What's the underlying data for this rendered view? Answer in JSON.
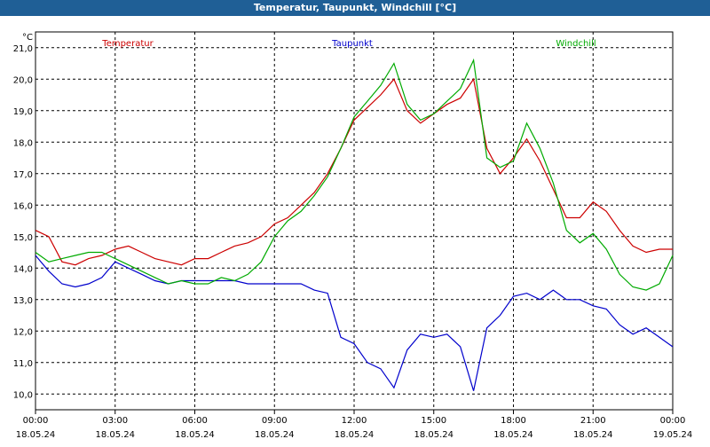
{
  "window": {
    "title": "Temperatur, Taupunkt, Windchill [°C]"
  },
  "colors": {
    "temperature": "#cc0000",
    "dewpoint": "#0000cc",
    "windchill": "#00aa00",
    "grid": "#000000"
  },
  "chart_data": {
    "type": "line",
    "title": "Temperatur, Taupunkt, Windchill [°C]",
    "ylabel": "°C",
    "xlabel": "",
    "ylim": [
      9.5,
      21.5
    ],
    "xlim": [
      0,
      24
    ],
    "grid": true,
    "y_ticks": [
      10.0,
      11.0,
      12.0,
      13.0,
      14.0,
      15.0,
      16.0,
      17.0,
      18.0,
      19.0,
      20.0,
      21.0
    ],
    "y_tick_labels": [
      "10,0",
      "11,0",
      "12,0",
      "13,0",
      "14,0",
      "15,0",
      "16,0",
      "17,0",
      "18,0",
      "19,0",
      "20,0",
      "21,0"
    ],
    "x_ticks": [
      0,
      3,
      6,
      9,
      12,
      15,
      18,
      21,
      24
    ],
    "x_tick_labels": [
      {
        "time": "00:00",
        "date": "18.05.24"
      },
      {
        "time": "03:00",
        "date": "18.05.24"
      },
      {
        "time": "06:00",
        "date": "18.05.24"
      },
      {
        "time": "09:00",
        "date": "18.05.24"
      },
      {
        "time": "12:00",
        "date": "18.05.24"
      },
      {
        "time": "15:00",
        "date": "18.05.24"
      },
      {
        "time": "18:00",
        "date": "18.05.24"
      },
      {
        "time": "21:00",
        "date": "18.05.24"
      },
      {
        "time": "00:00",
        "date": "19.05.24"
      }
    ],
    "x": [
      0,
      0.5,
      1,
      1.5,
      2,
      2.5,
      3,
      3.5,
      4,
      4.5,
      5,
      5.5,
      6,
      6.5,
      7,
      7.5,
      8,
      8.5,
      9,
      9.5,
      10,
      10.5,
      11,
      11.5,
      12,
      12.5,
      13,
      13.5,
      14,
      14.5,
      15,
      15.5,
      16,
      16.5,
      17,
      17.5,
      18,
      18.5,
      19,
      19.5,
      20,
      20.5,
      21,
      21.5,
      22,
      22.5,
      23,
      23.5,
      24
    ],
    "series": [
      {
        "name": "Temperatur",
        "color": "#cc0000",
        "values": [
          15.2,
          15.0,
          14.2,
          14.1,
          14.3,
          14.4,
          14.6,
          14.7,
          14.5,
          14.3,
          14.2,
          14.1,
          14.3,
          14.3,
          14.5,
          14.7,
          14.8,
          15.0,
          15.4,
          15.6,
          16.0,
          16.4,
          17.0,
          17.8,
          18.7,
          19.1,
          19.5,
          20.0,
          19.0,
          18.6,
          18.9,
          19.2,
          19.4,
          20.0,
          17.8,
          17.0,
          17.5,
          18.1,
          17.4,
          16.5,
          15.6,
          15.6,
          16.1,
          15.8,
          15.2,
          14.7,
          14.5,
          14.6,
          14.6
        ]
      },
      {
        "name": "Taupunkt",
        "color": "#0000cc",
        "values": [
          14.4,
          13.9,
          13.5,
          13.4,
          13.5,
          13.7,
          14.2,
          14.0,
          13.8,
          13.6,
          13.5,
          13.6,
          13.6,
          13.6,
          13.6,
          13.6,
          13.5,
          13.5,
          13.5,
          13.5,
          13.5,
          13.3,
          13.2,
          11.8,
          11.6,
          11.0,
          10.8,
          10.2,
          11.4,
          11.9,
          11.8,
          11.9,
          11.5,
          10.1,
          12.1,
          12.5,
          13.1,
          13.2,
          13.0,
          13.3,
          13.0,
          13.0,
          12.8,
          12.7,
          12.2,
          11.9,
          12.1,
          11.8,
          11.5
        ]
      },
      {
        "name": "Windchill",
        "color": "#00aa00",
        "values": [
          14.5,
          14.2,
          14.3,
          14.4,
          14.5,
          14.5,
          14.3,
          14.1,
          13.9,
          13.7,
          13.5,
          13.6,
          13.5,
          13.5,
          13.7,
          13.6,
          13.8,
          14.2,
          15.0,
          15.5,
          15.8,
          16.3,
          16.9,
          17.8,
          18.8,
          19.3,
          19.8,
          20.5,
          19.2,
          18.7,
          18.9,
          19.3,
          19.7,
          20.6,
          17.5,
          17.2,
          17.4,
          18.6,
          17.8,
          16.7,
          15.2,
          14.8,
          15.1,
          14.6,
          13.8,
          13.4,
          13.3,
          13.5,
          14.4
        ]
      }
    ]
  }
}
